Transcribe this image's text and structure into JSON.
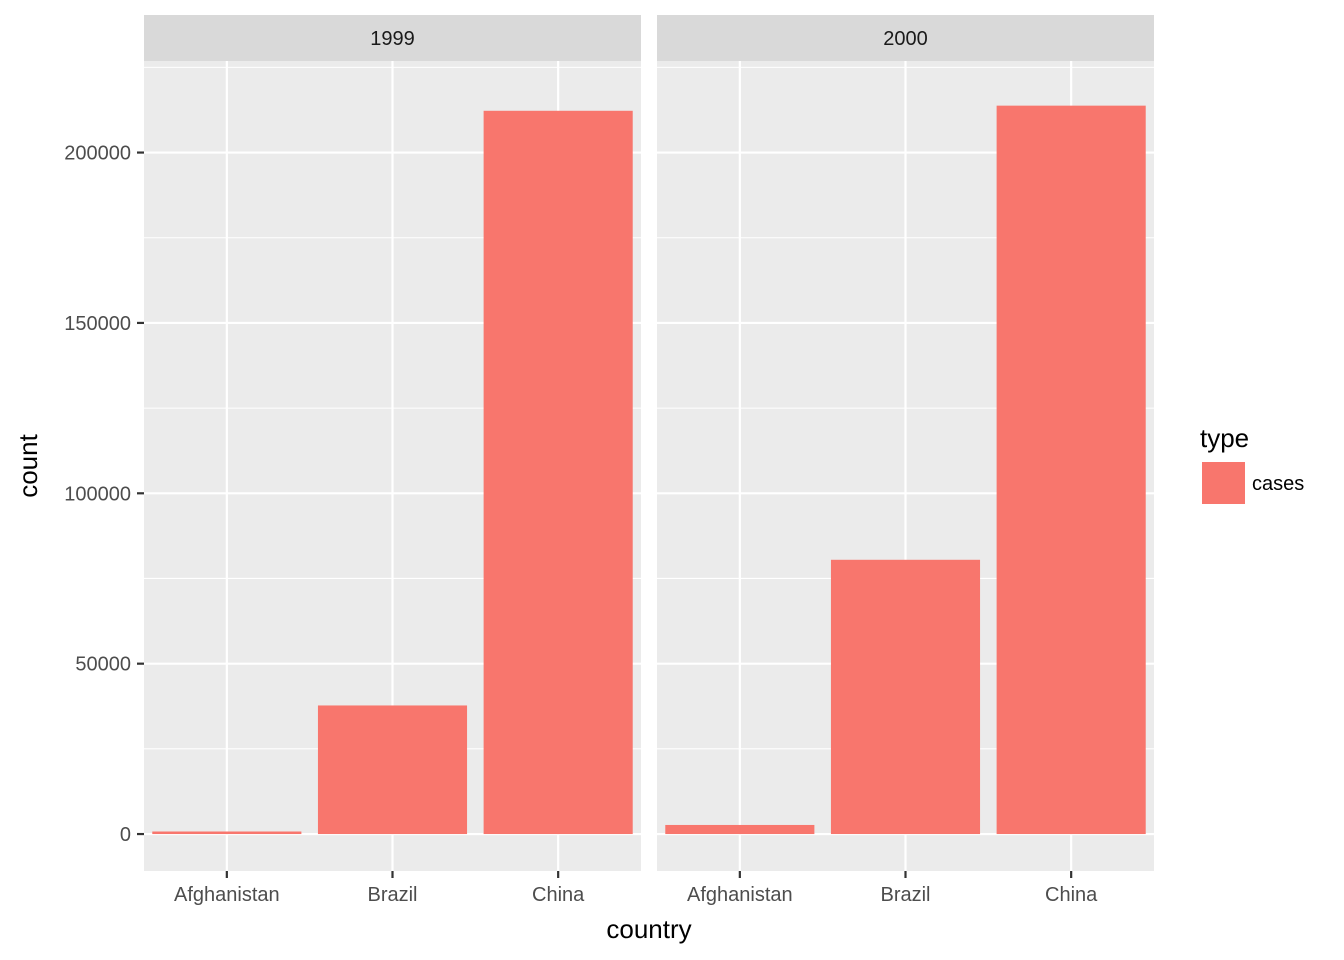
{
  "chart_data": {
    "type": "bar",
    "facet_labels": [
      "1999",
      "2000"
    ],
    "categories": [
      "Afghanistan",
      "Brazil",
      "China"
    ],
    "panels": [
      {
        "facet": "1999",
        "values": [
          745,
          37737,
          212258
        ]
      },
      {
        "facet": "2000",
        "values": [
          2666,
          80488,
          213766
        ]
      }
    ],
    "xlabel": "country",
    "ylabel": "count",
    "ylim": [
      -10845,
      226869
    ],
    "yticks": [
      0,
      50000,
      100000,
      150000,
      200000
    ],
    "ytick_labels": [
      "0",
      "50000",
      "100000",
      "150000",
      "200000"
    ],
    "grid": true,
    "legend": {
      "title": "type",
      "placement": "right",
      "entries": [
        {
          "label": "cases",
          "color": "#f8766d"
        }
      ]
    },
    "bar_color": "#f8766d"
  }
}
